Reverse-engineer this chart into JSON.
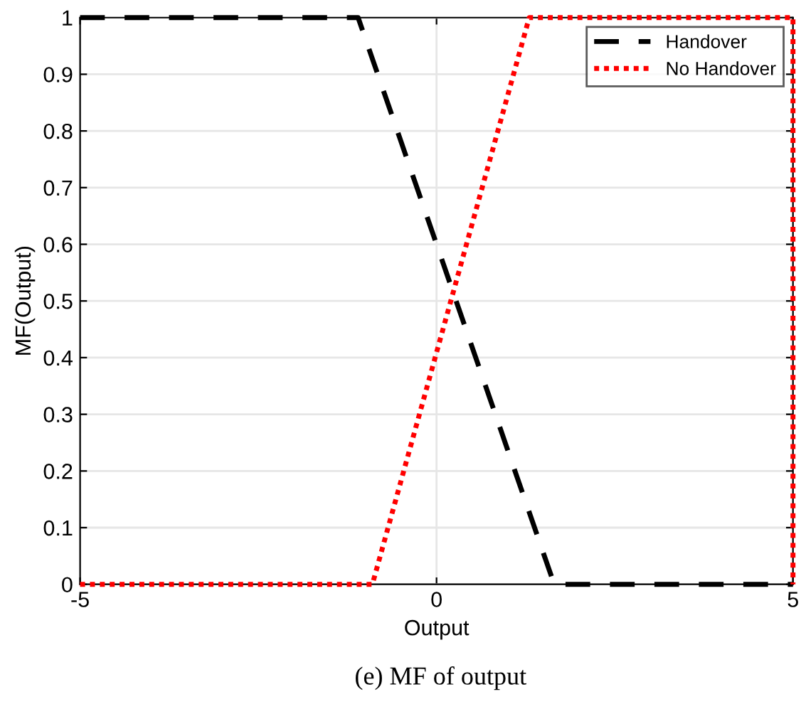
{
  "chart_data": {
    "type": "line",
    "xlabel": "Output",
    "ylabel": "MF(Output)",
    "series": [
      {
        "name": "Handover",
        "color": "#000000",
        "line_style": "dashed",
        "x": [
          -5,
          -1.1,
          1.65,
          5
        ],
        "values": [
          1,
          1,
          0,
          0
        ]
      },
      {
        "name": "No Handover",
        "color": "#ff0000",
        "line_style": "dotted",
        "x": [
          -5,
          -0.9,
          1.3,
          5,
          5
        ],
        "values": [
          0,
          0,
          1,
          1,
          0
        ]
      }
    ],
    "xlim": [
      -5,
      5
    ],
    "xticks": [
      -5,
      0,
      5
    ],
    "ylim": [
      0,
      1
    ],
    "yticks": [
      0,
      0.1,
      0.2,
      0.3,
      0.4,
      0.5,
      0.6,
      0.7,
      0.8,
      0.9,
      1
    ],
    "grid": true,
    "legend": "top right",
    "marker": "none",
    "annotations": [
      "(e) MF of output"
    ]
  }
}
